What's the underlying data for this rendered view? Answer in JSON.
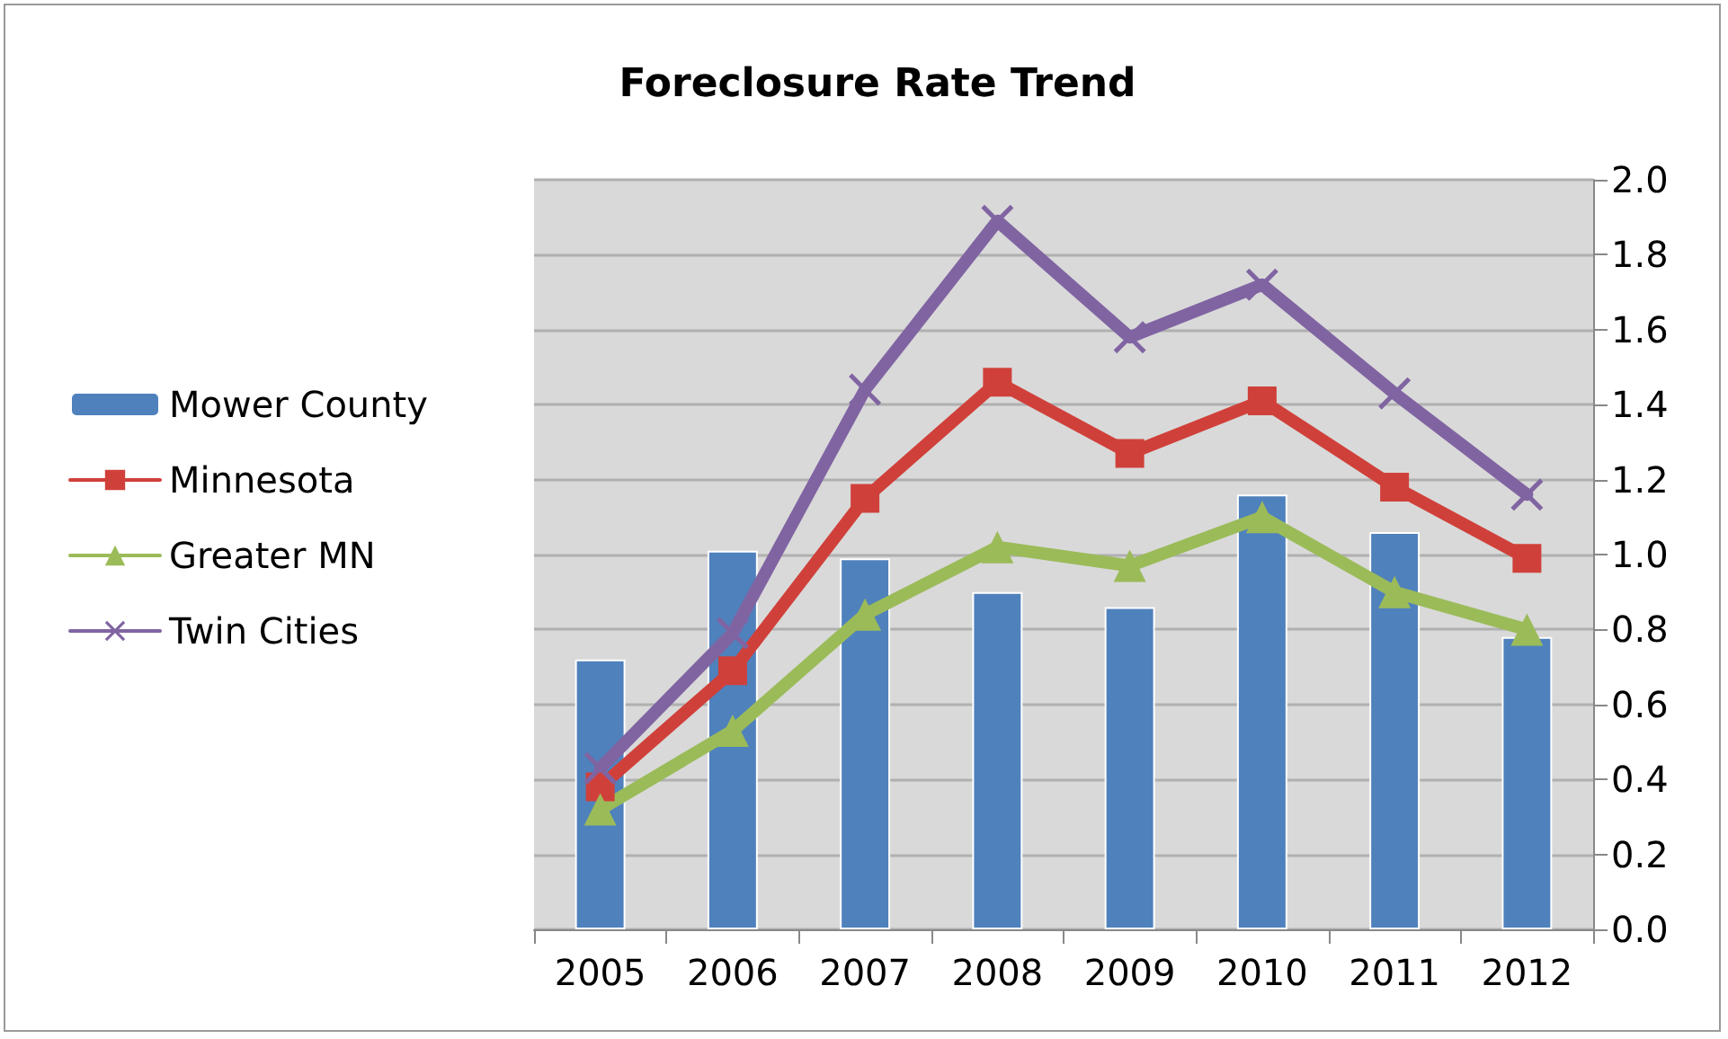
{
  "chart_data": {
    "type": "bar",
    "title": "Foreclosure Rate Trend",
    "categories": [
      "2005",
      "2006",
      "2007",
      "2008",
      "2009",
      "2010",
      "2011",
      "2012"
    ],
    "series": [
      {
        "name": "Mower County",
        "color": "#4f81bd",
        "values": [
          0.72,
          1.01,
          0.99,
          0.9,
          0.86,
          1.16,
          1.06,
          0.78
        ]
      },
      {
        "name": "Minnesota",
        "type": "line",
        "marker": "square",
        "color": "#d0403a",
        "values": [
          0.38,
          0.69,
          1.15,
          1.46,
          1.27,
          1.41,
          1.18,
          0.99
        ]
      },
      {
        "name": "Greater MN",
        "type": "line",
        "marker": "triangle",
        "color": "#9bbb59",
        "values": [
          0.32,
          0.53,
          0.84,
          1.02,
          0.97,
          1.1,
          0.9,
          0.8
        ]
      },
      {
        "name": "Twin Cities",
        "type": "line",
        "marker": "cross",
        "color": "#8064a2",
        "values": [
          0.43,
          0.79,
          1.44,
          1.89,
          1.58,
          1.72,
          1.43,
          1.16
        ]
      }
    ],
    "ylim": [
      0,
      2.0
    ],
    "yticks": [
      {
        "value": 0,
        "label": "0.0"
      },
      {
        "value": 0.2,
        "label": "0.2"
      },
      {
        "value": 0.4,
        "label": "0.4"
      },
      {
        "value": 0.6,
        "label": "0.6"
      },
      {
        "value": 0.8,
        "label": "0.8"
      },
      {
        "value": 1.0,
        "label": "1.0"
      },
      {
        "value": 1.2,
        "label": "1.2"
      },
      {
        "value": 1.4,
        "label": "1.4"
      },
      {
        "value": 1.6,
        "label": "1.6"
      },
      {
        "value": 1.8,
        "label": "1.8"
      },
      {
        "value": 2.0,
        "label": "2.0"
      }
    ],
    "grid": "y",
    "legend": "left"
  }
}
